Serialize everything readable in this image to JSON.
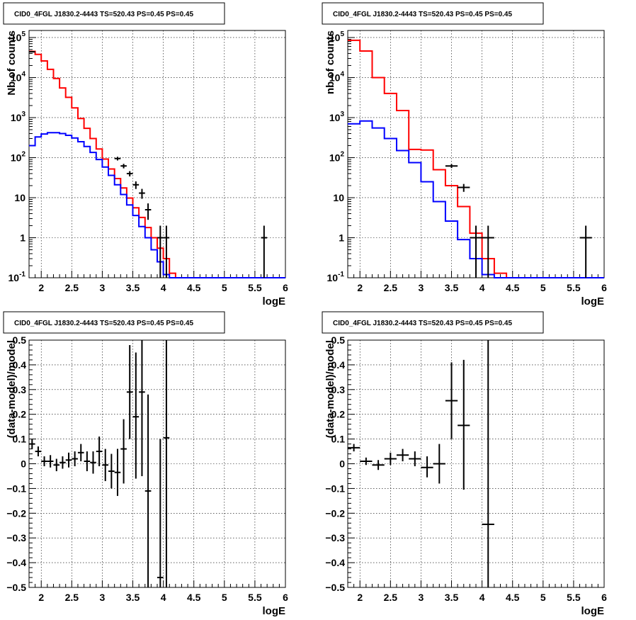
{
  "chart_data": [
    {
      "type": "line",
      "title": "CID0_4FGL J1830.2-4443 TS=520.43 PS=0.45 PS=0.45",
      "xlabel": "logE",
      "ylabel": "Nb of counts",
      "xlim": [
        1.8,
        6.0
      ],
      "ylim": [
        0.1,
        150000
      ],
      "ylog": true,
      "grid": true,
      "xticks": [
        "2",
        "2.5",
        "3",
        "3.5",
        "4",
        "4.5",
        "5",
        "5.5",
        "6"
      ],
      "yticks": [
        "10^-1",
        "1",
        "10",
        "10^2",
        "10^3",
        "10^4",
        "10^5"
      ],
      "bin_edges": [
        1.8,
        1.9,
        2.0,
        2.1,
        2.2,
        2.3,
        2.4,
        2.5,
        2.6,
        2.7,
        2.8,
        2.9,
        3.0,
        3.1,
        3.2,
        3.3,
        3.4,
        3.5,
        3.6,
        3.7,
        3.8,
        3.9,
        4.0,
        4.1,
        4.2,
        4.3,
        4.4,
        4.5,
        4.6,
        4.7,
        4.8,
        4.9,
        5.0,
        5.1,
        5.2,
        5.3,
        5.4,
        5.5,
        5.6,
        5.7,
        5.8,
        5.9,
        6.0
      ],
      "series": [
        {
          "color": "#ff0000",
          "style": "step",
          "values": [
            45000,
            38000,
            26000,
            16000,
            9500,
            5500,
            3200,
            1750,
            950,
            540,
            300,
            165,
            92,
            52,
            30,
            17.5,
            9.8,
            5.6,
            3.2,
            1.8,
            1.0,
            0.55,
            0.3,
            0.13,
            0.1,
            0.1,
            0.1,
            0.1,
            0.1,
            0.1,
            0.1,
            0.1,
            0.1,
            0.1,
            0.1,
            0.1,
            0.1,
            0.1,
            0.1,
            0.1,
            0.1,
            0.1
          ]
        },
        {
          "color": "#0000ff",
          "style": "step",
          "values": [
            200,
            330,
            390,
            420,
            420,
            400,
            360,
            310,
            250,
            190,
            135,
            90,
            58,
            36,
            21,
            12,
            6.6,
            3.6,
            1.9,
            1.0,
            0.5,
            0.25,
            0.12,
            0.1,
            0.1,
            0.1,
            0.1,
            0.1,
            0.1,
            0.1,
            0.1,
            0.1,
            0.1,
            0.1,
            0.1,
            0.1,
            0.1,
            0.1,
            0.1,
            0.1,
            0.1,
            0.1
          ]
        },
        {
          "color": "#000000",
          "style": "errorbar",
          "points": [
            {
              "x": 1.85,
              "y": 44000,
              "lo": 43600,
              "hi": 44400
            },
            {
              "x": 3.25,
              "y": 95,
              "lo": 85,
              "hi": 105
            },
            {
              "x": 3.35,
              "y": 62,
              "lo": 54,
              "hi": 70
            },
            {
              "x": 3.45,
              "y": 40,
              "lo": 34,
              "hi": 46
            },
            {
              "x": 3.55,
              "y": 21,
              "lo": 16.5,
              "hi": 25.5
            },
            {
              "x": 3.65,
              "y": 13,
              "lo": 9.4,
              "hi": 16.6
            },
            {
              "x": 3.75,
              "y": 5,
              "lo": 2.8,
              "hi": 7.2
            },
            {
              "x": 3.95,
              "y": 1,
              "lo": 0.1,
              "hi": 2.0
            },
            {
              "x": 4.05,
              "y": 1,
              "lo": 0.1,
              "hi": 2.0
            },
            {
              "x": 5.65,
              "y": 1,
              "lo": 0.1,
              "hi": 2.0
            }
          ]
        }
      ]
    },
    {
      "type": "line",
      "title": "CID0_4FGL J1830.2-4443 TS=520.43 PS=0.45 PS=0.45",
      "xlabel": "logE",
      "ylabel": "nb of counts",
      "xlim": [
        1.8,
        6.0
      ],
      "ylim": [
        0.1,
        150000
      ],
      "ylog": true,
      "grid": true,
      "xticks": [
        "2",
        "2.5",
        "3",
        "3.5",
        "4",
        "4.5",
        "5",
        "5.5",
        "6"
      ],
      "yticks": [
        "10^-1",
        "1",
        "10",
        "10^2",
        "10^3",
        "10^4",
        "10^5"
      ],
      "bin_edges": [
        1.8,
        2.0,
        2.2,
        2.4,
        2.6,
        2.8,
        3.0,
        3.2,
        3.4,
        3.6,
        3.8,
        4.0,
        4.2,
        4.4,
        4.6,
        4.8,
        5.0,
        5.2,
        5.4,
        5.6,
        5.8,
        6.0
      ],
      "series": [
        {
          "color": "#ff0000",
          "style": "step",
          "values": [
            85000,
            46000,
            10000,
            4000,
            1500,
            160,
            155,
            50,
            20,
            6,
            1.3,
            0.3,
            0.13,
            0.1,
            0.1,
            0.1,
            0.1,
            0.1,
            0.1,
            0.1,
            0.1
          ]
        },
        {
          "color": "#0000ff",
          "style": "step",
          "values": [
            700,
            820,
            550,
            300,
            150,
            75,
            25,
            8,
            2.6,
            0.9,
            0.3,
            0.12,
            0.1,
            0.1,
            0.1,
            0.1,
            0.1,
            0.1,
            0.1,
            0.1,
            0.1
          ]
        },
        {
          "color": "#000000",
          "style": "errorbar",
          "points": [
            {
              "x": 3.5,
              "y": 62,
              "lo": 55,
              "hi": 69
            },
            {
              "x": 3.7,
              "y": 18,
              "lo": 14,
              "hi": 22
            },
            {
              "x": 3.9,
              "y": 1,
              "lo": 0.1,
              "hi": 2.0
            },
            {
              "x": 4.1,
              "y": 1,
              "lo": 0.1,
              "hi": 2.0
            },
            {
              "x": 5.7,
              "y": 1,
              "lo": 0.1,
              "hi": 2.0
            }
          ]
        }
      ]
    },
    {
      "type": "scatter",
      "title": "CID0_4FGL J1830.2-4443 TS=520.43 PS=0.45 PS=0.45",
      "xlabel": "logE",
      "ylabel": "(data-model)/model",
      "xlim": [
        1.8,
        6.0
      ],
      "ylim": [
        -0.5,
        0.5
      ],
      "grid": true,
      "xticks": [
        "2",
        "2.5",
        "3",
        "3.5",
        "4",
        "4.5",
        "5",
        "5.5",
        "6"
      ],
      "yticks": [
        "-0.5",
        "-0.4",
        "-0.3",
        "-0.2",
        "-0.1",
        "0",
        "0.1",
        "0.2",
        "0.3",
        "0.4",
        "0.5"
      ],
      "xerr": 0.05,
      "points": [
        {
          "x": 1.85,
          "y": 0.08,
          "lo": 0.06,
          "hi": 0.1
        },
        {
          "x": 1.95,
          "y": 0.05,
          "lo": 0.03,
          "hi": 0.07
        },
        {
          "x": 2.05,
          "y": 0.01,
          "lo": -0.01,
          "hi": 0.03
        },
        {
          "x": 2.15,
          "y": 0.01,
          "lo": -0.015,
          "hi": 0.035
        },
        {
          "x": 2.25,
          "y": -0.005,
          "lo": -0.03,
          "hi": 0.02
        },
        {
          "x": 2.35,
          "y": 0.005,
          "lo": -0.02,
          "hi": 0.03
        },
        {
          "x": 2.45,
          "y": 0.015,
          "lo": -0.015,
          "hi": 0.045
        },
        {
          "x": 2.55,
          "y": 0.02,
          "lo": -0.01,
          "hi": 0.05
        },
        {
          "x": 2.65,
          "y": 0.045,
          "lo": 0.01,
          "hi": 0.08
        },
        {
          "x": 2.75,
          "y": 0.01,
          "lo": -0.03,
          "hi": 0.05
        },
        {
          "x": 2.85,
          "y": 0.005,
          "lo": -0.04,
          "hi": 0.05
        },
        {
          "x": 2.95,
          "y": 0.05,
          "lo": -0.01,
          "hi": 0.11
        },
        {
          "x": 3.05,
          "y": -0.005,
          "lo": -0.07,
          "hi": 0.06
        },
        {
          "x": 3.15,
          "y": -0.03,
          "lo": -0.1,
          "hi": 0.04
        },
        {
          "x": 3.25,
          "y": -0.035,
          "lo": -0.13,
          "hi": 0.06
        },
        {
          "x": 3.35,
          "y": 0.06,
          "lo": -0.08,
          "hi": 0.18
        },
        {
          "x": 3.45,
          "y": 0.29,
          "lo": 0.1,
          "hi": 0.48
        },
        {
          "x": 3.55,
          "y": 0.19,
          "lo": -0.06,
          "hi": 0.45
        },
        {
          "x": 3.65,
          "y": 0.29,
          "lo": -0.05,
          "hi": 0.5
        },
        {
          "x": 3.75,
          "y": -0.11,
          "lo": -0.5,
          "hi": 0.28
        },
        {
          "x": 3.95,
          "y": -0.46,
          "lo": -0.5,
          "hi": 0.1
        },
        {
          "x": 4.05,
          "y": 0.105,
          "lo": -0.5,
          "hi": 0.5
        }
      ]
    },
    {
      "type": "scatter",
      "title": "CID0_4FGL J1830.2-4443 TS=520.43 PS=0.45 PS=0.45",
      "xlabel": "logE",
      "ylabel": "(data-model)/model",
      "xlim": [
        1.8,
        6.0
      ],
      "ylim": [
        -0.5,
        0.5
      ],
      "grid": true,
      "xticks": [
        "2",
        "2.5",
        "3",
        "3.5",
        "4",
        "4.5",
        "5",
        "5.5",
        "6"
      ],
      "yticks": [
        "-0.5",
        "-0.4",
        "-0.3",
        "-0.2",
        "-0.1",
        "0",
        "0.1",
        "0.2",
        "0.3",
        "0.4",
        "0.5"
      ],
      "xerr": 0.1,
      "points": [
        {
          "x": 1.9,
          "y": 0.065,
          "lo": 0.05,
          "hi": 0.08
        },
        {
          "x": 2.1,
          "y": 0.01,
          "lo": -0.005,
          "hi": 0.025
        },
        {
          "x": 2.3,
          "y": -0.005,
          "lo": -0.025,
          "hi": 0.015
        },
        {
          "x": 2.5,
          "y": 0.02,
          "lo": -0.005,
          "hi": 0.045
        },
        {
          "x": 2.7,
          "y": 0.035,
          "lo": 0.01,
          "hi": 0.06
        },
        {
          "x": 2.9,
          "y": 0.02,
          "lo": -0.01,
          "hi": 0.05
        },
        {
          "x": 3.1,
          "y": -0.015,
          "lo": -0.055,
          "hi": 0.03
        },
        {
          "x": 3.3,
          "y": 0.0,
          "lo": -0.08,
          "hi": 0.08
        },
        {
          "x": 3.5,
          "y": 0.255,
          "lo": 0.1,
          "hi": 0.41
        },
        {
          "x": 3.7,
          "y": 0.155,
          "lo": -0.105,
          "hi": 0.42
        },
        {
          "x": 4.1,
          "y": -0.245,
          "lo": -0.5,
          "hi": 0.5
        }
      ]
    }
  ]
}
